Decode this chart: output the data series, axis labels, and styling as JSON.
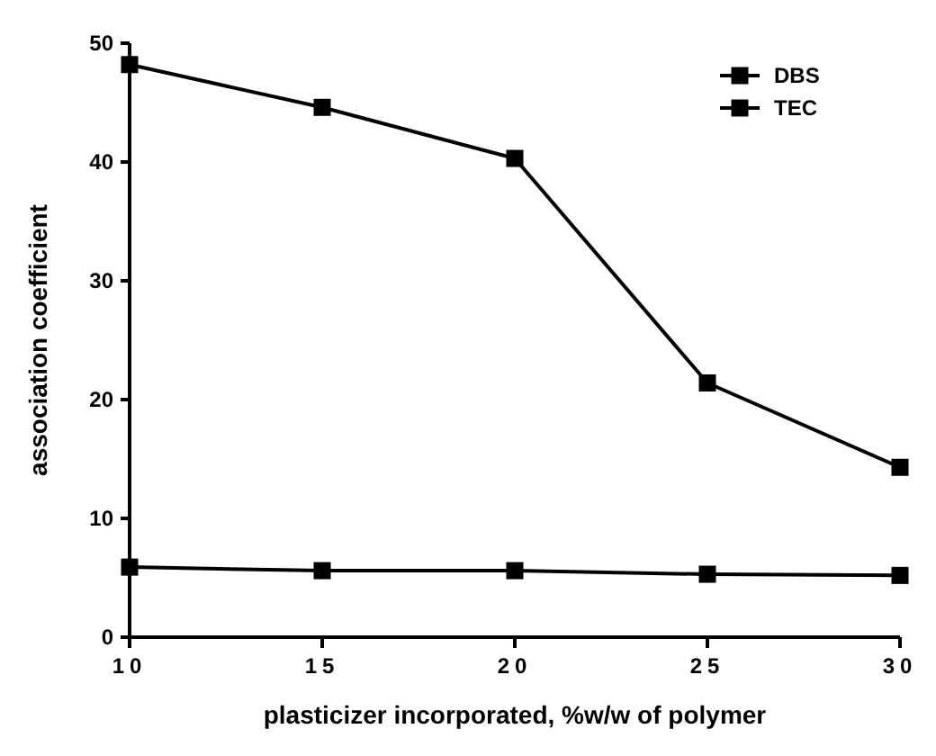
{
  "chart_data": {
    "type": "line",
    "xlabel": "plasticizer incorporated, %w/w of polymer",
    "ylabel": "association coefficient",
    "x": [
      10,
      15,
      20,
      25,
      30
    ],
    "series": [
      {
        "name": "DBS",
        "color": "#000000",
        "values": [
          48.2,
          44.6,
          40.3,
          21.4,
          14.3
        ]
      },
      {
        "name": "TEC",
        "color": "#000000",
        "values": [
          5.9,
          5.6,
          5.6,
          5.3,
          5.2
        ]
      }
    ],
    "xlim": [
      10,
      30
    ],
    "xticks": [
      10,
      15,
      20,
      25,
      30
    ],
    "ylim": [
      0,
      50
    ],
    "yticks": [
      0,
      10,
      20,
      30,
      40,
      50
    ],
    "grid": false,
    "legend": "top right",
    "marker": "square",
    "line_style": "solid"
  }
}
